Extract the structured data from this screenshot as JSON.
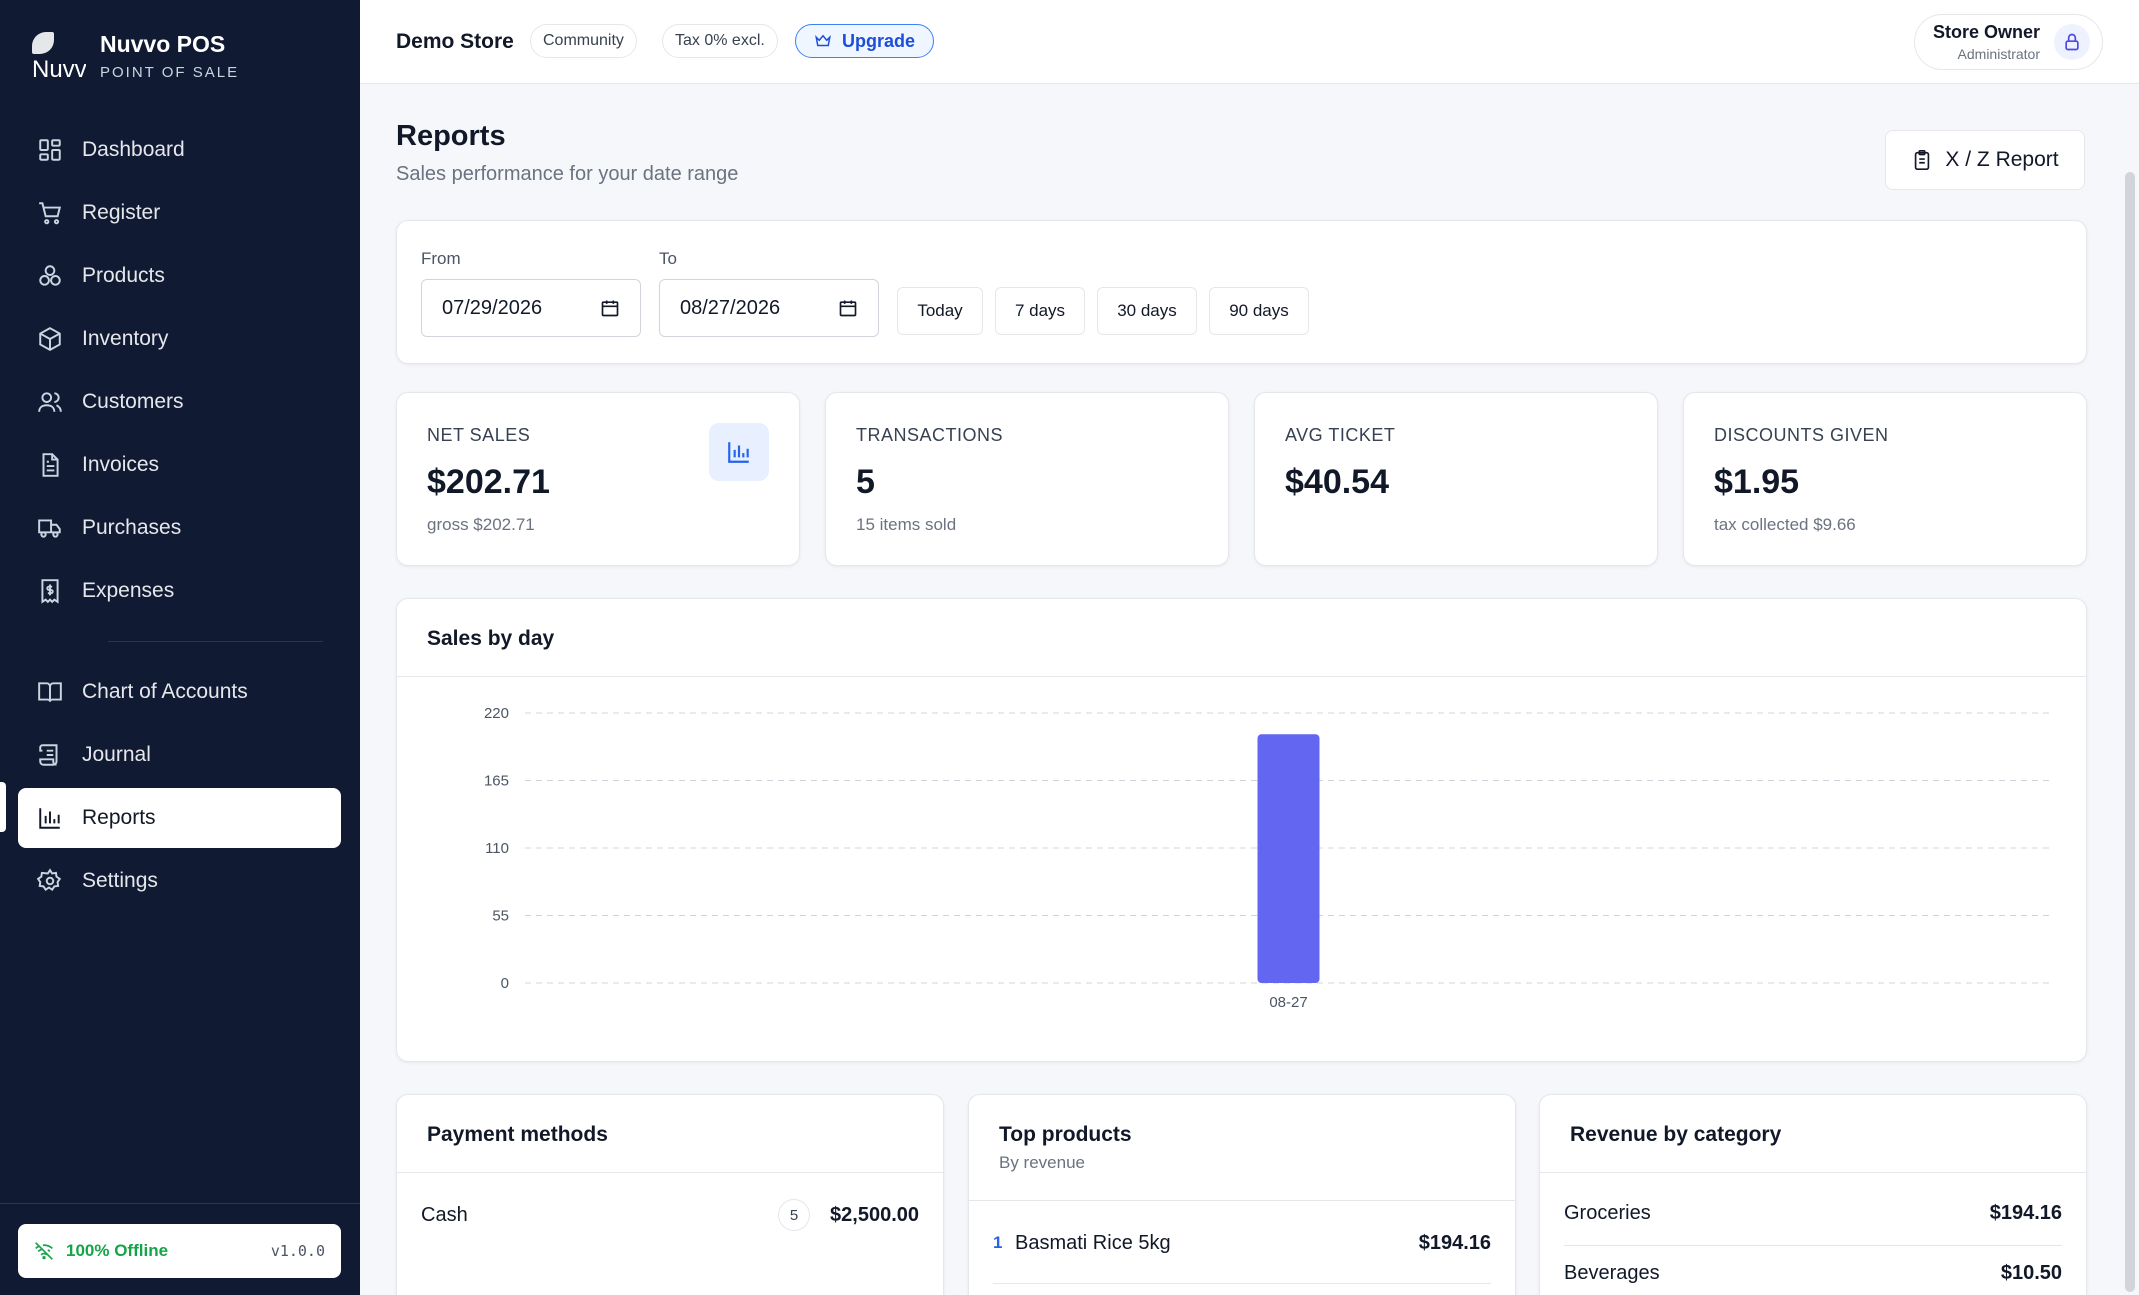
{
  "brand": {
    "name": "Nuvvo POS",
    "subtitle": "POINT OF SALE",
    "logo_text": "Nuvv"
  },
  "nav": {
    "items": [
      {
        "label": "Dashboard",
        "icon": "grid-icon"
      },
      {
        "label": "Register",
        "icon": "cart-icon"
      },
      {
        "label": "Products",
        "icon": "boxes-icon"
      },
      {
        "label": "Inventory",
        "icon": "package-icon"
      },
      {
        "label": "Customers",
        "icon": "users-icon"
      },
      {
        "label": "Invoices",
        "icon": "file-icon"
      },
      {
        "label": "Purchases",
        "icon": "truck-icon"
      },
      {
        "label": "Expenses",
        "icon": "dollar-receipt-icon"
      }
    ],
    "items2": [
      {
        "label": "Chart of Accounts",
        "icon": "book-icon"
      },
      {
        "label": "Journal",
        "icon": "scroll-icon"
      },
      {
        "label": "Reports",
        "icon": "bar-chart-icon",
        "active": true
      },
      {
        "label": "Settings",
        "icon": "gear-icon"
      }
    ]
  },
  "footer": {
    "status": "100% Offline",
    "version": "v1.0.0",
    "status_color": "#16a34a"
  },
  "header": {
    "store": "Demo Store",
    "plan": "Community",
    "tax": "Tax 0% excl.",
    "upgrade": "Upgrade",
    "user_name": "Store Owner",
    "user_role": "Administrator"
  },
  "page": {
    "title": "Reports",
    "subtitle": "Sales performance for your date range",
    "xz_button": "X / Z Report"
  },
  "filters": {
    "from_label": "From",
    "from_value": "07/29/2026",
    "to_label": "To",
    "to_value": "08/27/2026",
    "quick": [
      "Today",
      "7 days",
      "30 days",
      "90 days"
    ]
  },
  "stats": [
    {
      "label": "NET SALES",
      "value": "$202.71",
      "sub": "gross $202.71"
    },
    {
      "label": "TRANSACTIONS",
      "value": "5",
      "sub": "15 items sold"
    },
    {
      "label": "AVG TICKET",
      "value": "$40.54",
      "sub": ""
    },
    {
      "label": "DISCOUNTS GIVEN",
      "value": "$1.95",
      "sub": "tax collected $9.66"
    }
  ],
  "chart_data": {
    "type": "bar",
    "title": "Sales by day",
    "categories": [
      "08-27"
    ],
    "values": [
      202.71
    ],
    "ylim": [
      0,
      220
    ],
    "yticks": [
      0,
      55,
      110,
      165,
      220
    ],
    "grid": true,
    "bar_color": "#6366f1"
  },
  "payment_methods": {
    "title": "Payment methods",
    "rows": [
      {
        "name": "Cash",
        "count": "5",
        "amount": "$2,500.00"
      }
    ]
  },
  "top_products": {
    "title": "Top products",
    "subtitle": "By revenue",
    "rows": [
      {
        "rank": "1",
        "name": "Basmati Rice 5kg",
        "amount": "$194.16"
      }
    ]
  },
  "revenue_by_category": {
    "title": "Revenue by category",
    "rows": [
      {
        "name": "Groceries",
        "amount": "$194.16"
      },
      {
        "name": "Beverages",
        "amount": "$10.50"
      }
    ]
  }
}
